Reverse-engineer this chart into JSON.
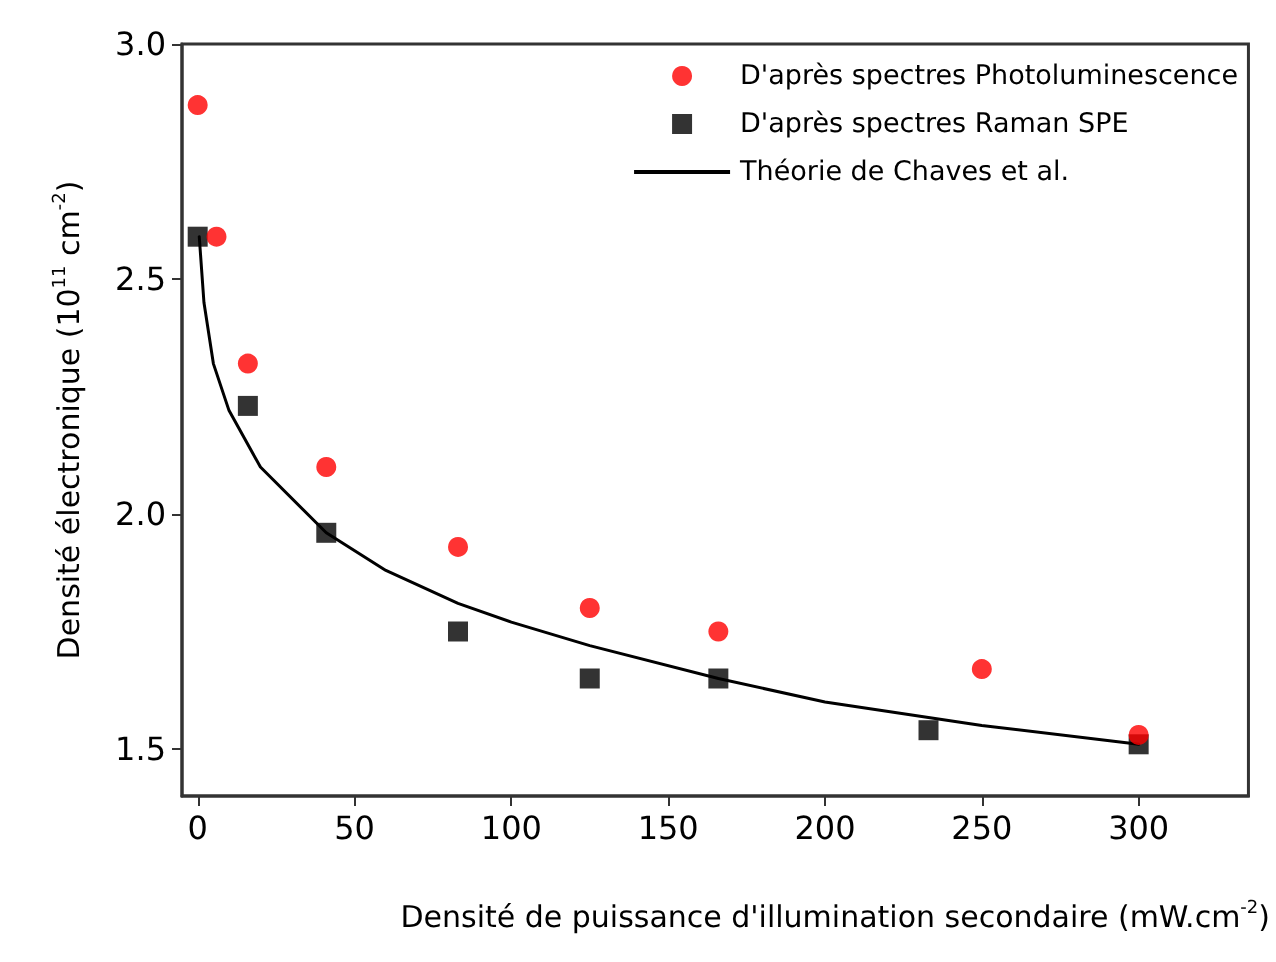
{
  "chart_data": {
    "type": "scatter",
    "xlabel": "Densité de puissance d'illumination secondaire (mW.cm$^{-2}$)",
    "ylabel": "Densité électronique (10$^{11}$ cm$^{-2}$)",
    "xlim": [
      -5,
      335
    ],
    "xticks": [
      0,
      50,
      100,
      150,
      200,
      250,
      300
    ],
    "ylim": [
      1.4,
      3.0
    ],
    "yticks": [
      {
        "value": 1.5,
        "label": "1.5"
      },
      {
        "value": 2.0,
        "label": "2.0"
      },
      {
        "value": 2.5,
        "label": "2.5"
      },
      {
        "value": 3.0,
        "label": "3.0"
      }
    ],
    "grid": false,
    "legend": "top right",
    "series": [
      {
        "name": "D'après spectres Photoluminescence",
        "type": "scatter",
        "marker": "circle",
        "color": "#ff0000",
        "x": [
          0,
          6,
          16,
          41,
          83,
          125,
          166,
          250,
          300
        ],
        "values": [
          2.87,
          2.59,
          2.32,
          2.1,
          1.93,
          1.8,
          1.75,
          1.67,
          1.53
        ]
      },
      {
        "name": "D'après spectres Raman SPE",
        "type": "scatter",
        "marker": "square",
        "color": "#000000",
        "x": [
          0,
          16,
          41,
          83,
          125,
          166,
          233,
          300
        ],
        "values": [
          2.59,
          2.23,
          1.96,
          1.75,
          1.65,
          1.65,
          1.54,
          1.51
        ]
      },
      {
        "name": "Théorie de Chaves et al.",
        "type": "line",
        "marker": "none",
        "line_style": "solid",
        "color": "#000000",
        "x": [
          0.5,
          2,
          5,
          10,
          20,
          41,
          60,
          83,
          100,
          125,
          166,
          200,
          250,
          300
        ],
        "values": [
          2.59,
          2.45,
          2.32,
          2.22,
          2.1,
          1.96,
          1.88,
          1.81,
          1.77,
          1.72,
          1.65,
          1.6,
          1.55,
          1.51
        ]
      }
    ]
  }
}
